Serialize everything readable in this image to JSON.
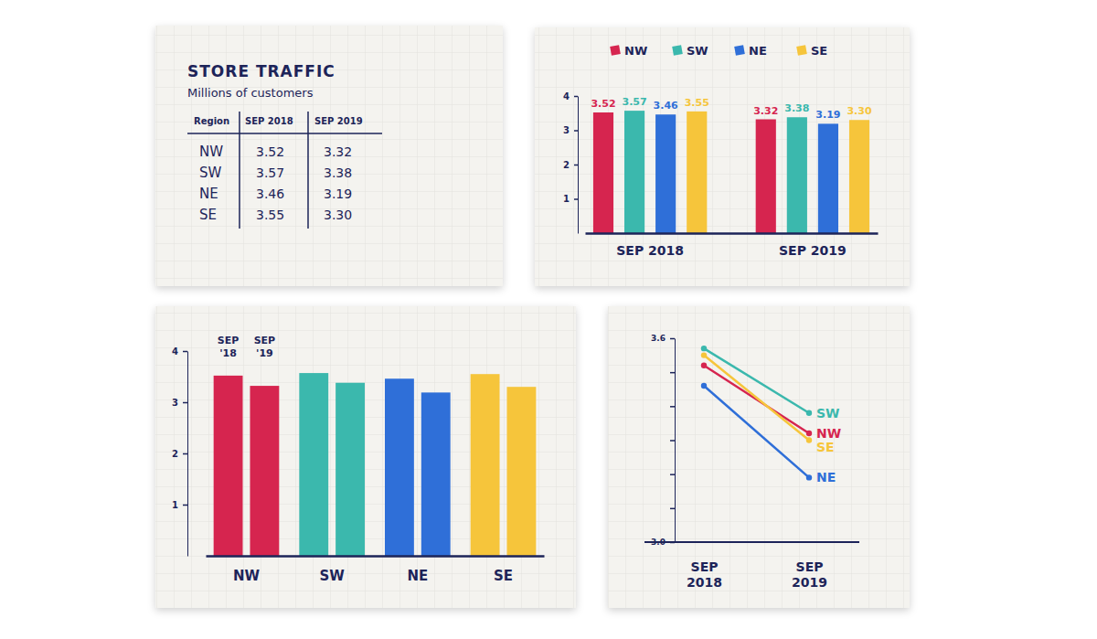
{
  "table": {
    "title": "STORE TRAFFIC",
    "subtitle": "Millions of customers",
    "columns": [
      "Region",
      "SEP 2018",
      "SEP 2019"
    ],
    "rows": [
      [
        "NW",
        "3.52",
        "3.32"
      ],
      [
        "SW",
        "3.57",
        "3.38"
      ],
      [
        "NE",
        "3.46",
        "3.19"
      ],
      [
        "SE",
        "3.55",
        "3.30"
      ]
    ]
  },
  "chart_data": [
    {
      "type": "bar",
      "categories": [
        "SEP 2018",
        "SEP 2019"
      ],
      "series": [
        {
          "name": "NW",
          "color": "#d6254f",
          "values": [
            3.52,
            3.32
          ]
        },
        {
          "name": "SW",
          "color": "#3bb8ad",
          "values": [
            3.57,
            3.38
          ]
        },
        {
          "name": "NE",
          "color": "#2f6fd8",
          "values": [
            3.46,
            3.19
          ]
        },
        {
          "name": "SE",
          "color": "#f6c53b",
          "values": [
            3.55,
            3.3
          ],
          "value_labels": [
            "3.55",
            "3.30"
          ]
        }
      ],
      "ylim": [
        0,
        4
      ],
      "yticks": [
        1,
        2,
        3,
        4
      ],
      "grid": false,
      "legend": "top",
      "data_labels": true
    },
    {
      "type": "bar",
      "categories": [
        "NW",
        "SW",
        "NE",
        "SE"
      ],
      "colors": [
        "#d6254f",
        "#3bb8ad",
        "#2f6fd8",
        "#f6c53b"
      ],
      "series": [
        {
          "name": "SEP '18",
          "values": [
            3.52,
            3.57,
            3.46,
            3.55
          ]
        },
        {
          "name": "SEP '19",
          "values": [
            3.32,
            3.38,
            3.19,
            3.3
          ]
        }
      ],
      "ylim": [
        0,
        4
      ],
      "yticks": [
        1,
        2,
        3,
        4
      ],
      "grid": false,
      "legend": "top-left"
    },
    {
      "type": "line",
      "categories": [
        "SEP 2018",
        "SEP 2019"
      ],
      "series": [
        {
          "name": "NW",
          "color": "#d6254f",
          "values": [
            3.52,
            3.32
          ]
        },
        {
          "name": "SW",
          "color": "#3bb8ad",
          "values": [
            3.57,
            3.38
          ]
        },
        {
          "name": "NE",
          "color": "#2f6fd8",
          "values": [
            3.46,
            3.19
          ]
        },
        {
          "name": "SE",
          "color": "#f6c53b",
          "values": [
            3.55,
            3.3
          ]
        }
      ],
      "ylim": [
        3,
        3.6
      ],
      "yticks": [
        {
          "value": 3,
          "label": "3.0"
        },
        {
          "value": 3.1,
          "label": null
        },
        {
          "value": 3.2,
          "label": null
        },
        {
          "value": 3.3,
          "label": null
        },
        {
          "value": 3.4,
          "label": null
        },
        {
          "value": 3.5,
          "label": null
        },
        {
          "value": 3.6,
          "label": "3.6"
        }
      ],
      "grid": false,
      "marker": "circle",
      "legend": "right"
    }
  ]
}
